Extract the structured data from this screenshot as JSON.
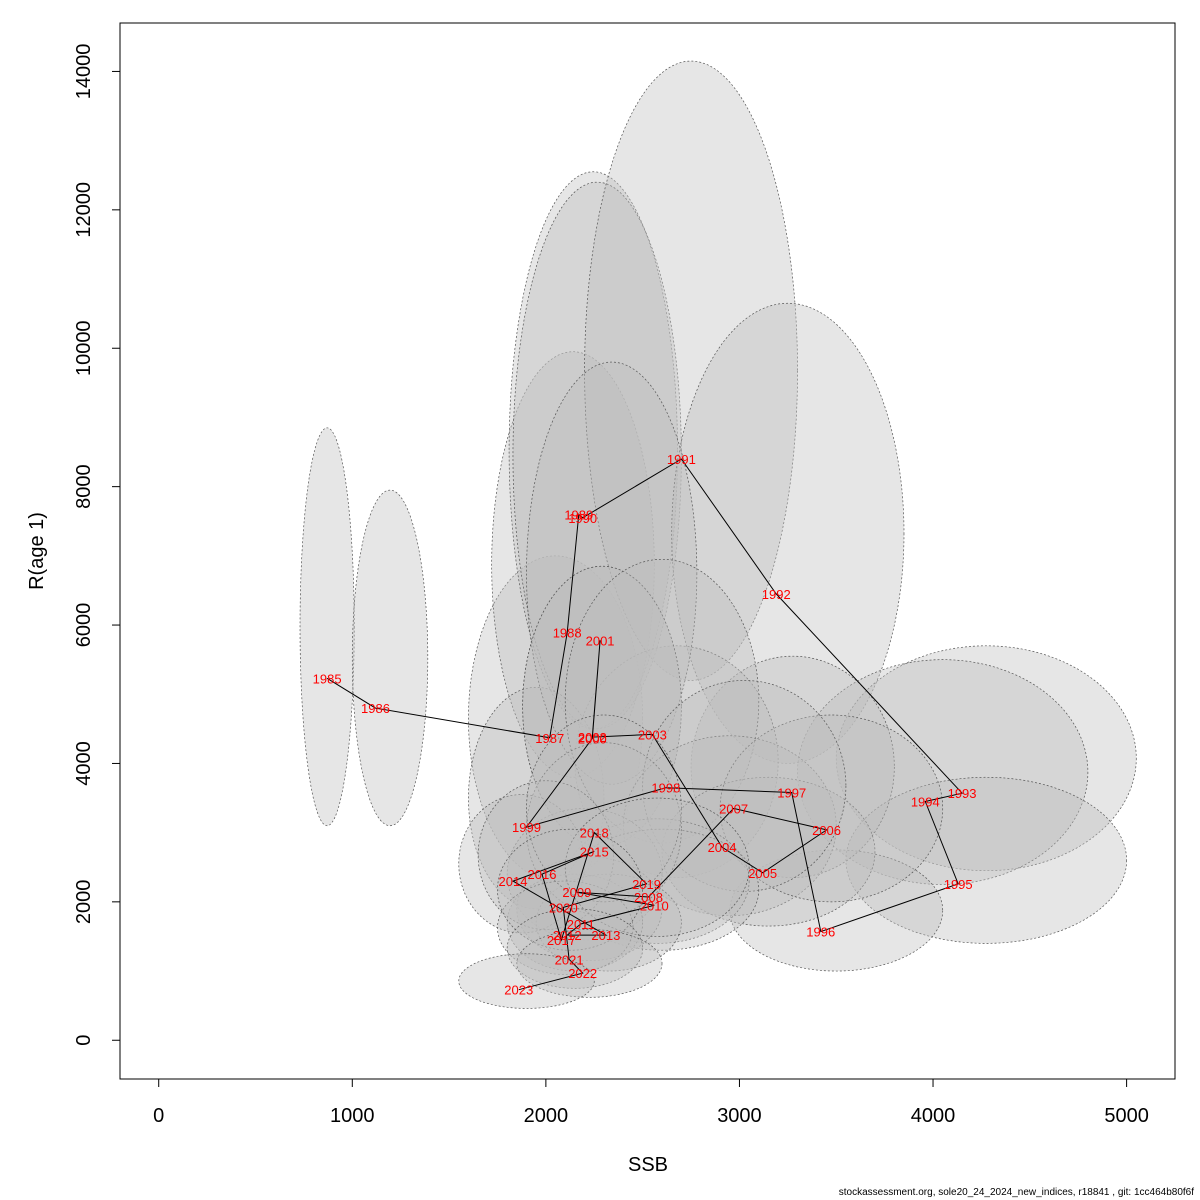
{
  "chart_data": {
    "type": "scatter",
    "xlabel": "SSB",
    "ylabel": "R(age 1)",
    "xlim": [
      -200,
      5250
    ],
    "ylim": [
      -560,
      14700
    ],
    "xticks": [
      0,
      1000,
      2000,
      3000,
      4000,
      5000
    ],
    "yticks": [
      0,
      2000,
      4000,
      6000,
      8000,
      10000,
      12000,
      14000
    ],
    "grid": false,
    "legend": "none",
    "colors": {
      "label": "#ff0000",
      "line": "#000000",
      "ellipse_fill": "#bebebe",
      "ellipse_stroke": "#555555"
    },
    "points": [
      {
        "year": "1985",
        "x": 870,
        "y": 5230,
        "xe": [
          730,
          1010
        ],
        "ye": [
          3100,
          8850
        ]
      },
      {
        "year": "1986",
        "x": 1120,
        "y": 4800,
        "xe": [
          1000,
          1390
        ],
        "ye": [
          3100,
          7950
        ]
      },
      {
        "year": "1987",
        "x": 2020,
        "y": 4370,
        "xe": [
          1600,
          2500
        ],
        "ye": [
          2300,
          7000
        ]
      },
      {
        "year": "1988",
        "x": 2110,
        "y": 5890,
        "xe": [
          1720,
          2560
        ],
        "ye": [
          3800,
          9950
        ]
      },
      {
        "year": "1989",
        "x": 2170,
        "y": 7600,
        "xe": [
          1810,
          2680
        ],
        "ye": [
          4500,
          12550
        ]
      },
      {
        "year": "1990",
        "x": 2190,
        "y": 7550,
        "xe": [
          1830,
          2700
        ],
        "ye": [
          4500,
          12400
        ]
      },
      {
        "year": "1991",
        "x": 2700,
        "y": 8400,
        "xe": [
          2200,
          3300
        ],
        "ye": [
          5200,
          14150
        ]
      },
      {
        "year": "1992",
        "x": 3190,
        "y": 6450,
        "xe": [
          2650,
          3850
        ],
        "ye": [
          4000,
          10650
        ]
      },
      {
        "year": "1993",
        "x": 4150,
        "y": 3570,
        "xe": [
          3500,
          5050
        ],
        "ye": [
          2450,
          5700
        ]
      },
      {
        "year": "1994",
        "x": 3960,
        "y": 3450,
        "xe": [
          3300,
          4800
        ],
        "ye": [
          2250,
          5500
        ]
      },
      {
        "year": "1995",
        "x": 4130,
        "y": 2260,
        "xe": [
          3550,
          5000
        ],
        "ye": [
          1400,
          3800
        ]
      },
      {
        "year": "1996",
        "x": 3420,
        "y": 1570,
        "xe": [
          2950,
          4050
        ],
        "ye": [
          1000,
          2750
        ]
      },
      {
        "year": "1997",
        "x": 3270,
        "y": 3580,
        "xe": [
          2750,
          3800
        ],
        "ye": [
          2350,
          5550
        ]
      },
      {
        "year": "1998",
        "x": 2620,
        "y": 3650,
        "xe": [
          2150,
          3200
        ],
        "ye": [
          2350,
          5700
        ]
      },
      {
        "year": "1999",
        "x": 1900,
        "y": 3080,
        "xe": [
          1600,
          2300
        ],
        "ye": [
          1900,
          5100
        ]
      },
      {
        "year": "2000",
        "x": 2240,
        "y": 4360,
        "xe": [
          1880,
          2700
        ],
        "ye": [
          2800,
          6850
        ]
      },
      {
        "year": "2001",
        "x": 2280,
        "y": 5780,
        "xe": [
          1900,
          2780
        ],
        "ye": [
          3700,
          9800
        ]
      },
      {
        "year": "2002",
        "x": 2240,
        "y": 4380,
        "xe": [
          1880,
          2700
        ],
        "ye": [
          2800,
          6850
        ]
      },
      {
        "year": "2003",
        "x": 2550,
        "y": 4420,
        "xe": [
          2100,
          3100
        ],
        "ye": [
          2850,
          6950
        ]
      },
      {
        "year": "2004",
        "x": 2910,
        "y": 2790,
        "xe": [
          2400,
          3500
        ],
        "ye": [
          1800,
          4400
        ]
      },
      {
        "year": "2005",
        "x": 3120,
        "y": 2420,
        "xe": [
          2600,
          3700
        ],
        "ye": [
          1650,
          3800
        ]
      },
      {
        "year": "2006",
        "x": 3450,
        "y": 3040,
        "xe": [
          2900,
          4050
        ],
        "ye": [
          2000,
          4700
        ]
      },
      {
        "year": "2007",
        "x": 2970,
        "y": 3350,
        "xe": [
          2500,
          3550
        ],
        "ye": [
          2150,
          5200
        ]
      },
      {
        "year": "2008",
        "x": 2530,
        "y": 2070,
        "xe": [
          2100,
          3050
        ],
        "ye": [
          1400,
          3200
        ]
      },
      {
        "year": "2009",
        "x": 2160,
        "y": 2140,
        "xe": [
          1800,
          2600
        ],
        "ye": [
          1450,
          3350
        ]
      },
      {
        "year": "2010",
        "x": 2560,
        "y": 1950,
        "xe": [
          2100,
          3100
        ],
        "ye": [
          1300,
          3050
        ]
      },
      {
        "year": "2011",
        "x": 2180,
        "y": 1680,
        "xe": [
          1850,
          2600
        ],
        "ye": [
          1150,
          2650
        ]
      },
      {
        "year": "2012",
        "x": 2110,
        "y": 1520,
        "xe": [
          1800,
          2500
        ],
        "ye": [
          1000,
          2400
        ]
      },
      {
        "year": "2013",
        "x": 2310,
        "y": 1520,
        "xe": [
          1950,
          2700
        ],
        "ye": [
          1000,
          2400
        ]
      },
      {
        "year": "2014",
        "x": 1830,
        "y": 2300,
        "xe": [
          1550,
          2200
        ],
        "ye": [
          1550,
          3550
        ]
      },
      {
        "year": "2015",
        "x": 2250,
        "y": 2730,
        "xe": [
          1900,
          2700
        ],
        "ye": [
          1800,
          4300
        ]
      },
      {
        "year": "2016",
        "x": 1980,
        "y": 2400,
        "xe": [
          1650,
          2350
        ],
        "ye": [
          1600,
          3750
        ]
      },
      {
        "year": "2017",
        "x": 2080,
        "y": 1450,
        "xe": [
          1750,
          2450
        ],
        "ye": [
          950,
          2300
        ]
      },
      {
        "year": "2018",
        "x": 2250,
        "y": 3000,
        "xe": [
          1900,
          2700
        ],
        "ye": [
          2000,
          4700
        ]
      },
      {
        "year": "2019",
        "x": 2520,
        "y": 2260,
        "xe": [
          2100,
          3050
        ],
        "ye": [
          1500,
          3500
        ]
      },
      {
        "year": "2020",
        "x": 2090,
        "y": 1920,
        "xe": [
          1750,
          2500
        ],
        "ye": [
          1300,
          3050
        ]
      },
      {
        "year": "2021",
        "x": 2120,
        "y": 1170,
        "xe": [
          1800,
          2500
        ],
        "ye": [
          750,
          1900
        ]
      },
      {
        "year": "2022",
        "x": 2190,
        "y": 970,
        "xe": [
          1850,
          2600
        ],
        "ye": [
          620,
          1600
        ]
      },
      {
        "year": "2023",
        "x": 1860,
        "y": 730,
        "xe": [
          1550,
          2250
        ],
        "ye": [
          460,
          1250
        ]
      }
    ]
  },
  "footer": "stockassessment.org, sole20_24_2024_new_indices, r18841 , git: 1cc464b80f6f"
}
